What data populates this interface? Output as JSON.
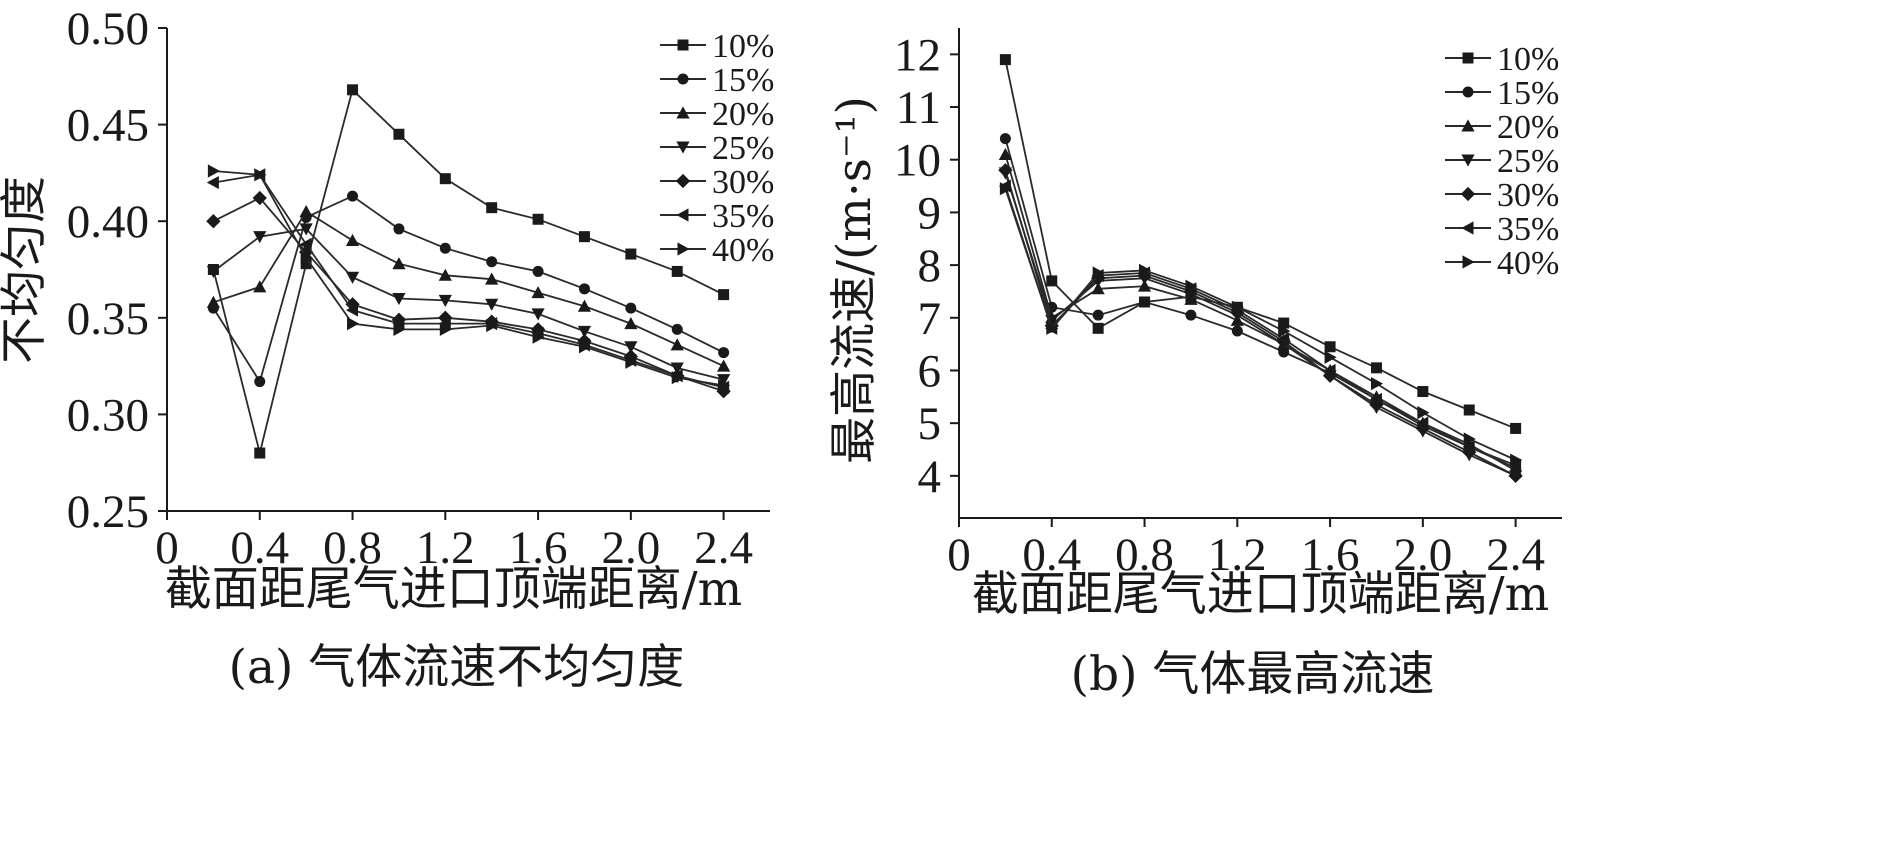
{
  "chart_data": [
    {
      "id": "a",
      "type": "line",
      "caption": "(a) 气体流速不均匀度",
      "title": "",
      "xlabel": "截面距尾气进口顶端距离/m",
      "ylabel": "不均匀度",
      "xlim": [
        0,
        2.6
      ],
      "ylim": [
        0.25,
        0.5
      ],
      "xticks": [
        0,
        0.4,
        0.8,
        1.2,
        1.6,
        2.0,
        2.4
      ],
      "xtick_labels": [
        "0",
        "0.4",
        "0.8",
        "1.2",
        "1.6",
        "2.0",
        "2.4"
      ],
      "yticks": [
        0.25,
        0.3,
        0.35,
        0.4,
        0.45,
        0.5
      ],
      "ytick_labels": [
        "0.25",
        "0.30",
        "0.35",
        "0.40",
        "0.45",
        "0.50"
      ],
      "legend_position": "top-right",
      "x": [
        0.2,
        0.4,
        0.6,
        0.8,
        1.0,
        1.2,
        1.4,
        1.6,
        1.8,
        2.0,
        2.2,
        2.4
      ],
      "series": [
        {
          "name": "10%",
          "marker": "square",
          "values": [
            0.375,
            0.28,
            0.378,
            0.468,
            0.445,
            0.422,
            0.407,
            0.401,
            0.392,
            0.383,
            0.374,
            0.362
          ]
        },
        {
          "name": "15%",
          "marker": "circle",
          "values": [
            0.355,
            0.317,
            0.402,
            0.413,
            0.396,
            0.386,
            0.379,
            0.374,
            0.365,
            0.355,
            0.344,
            0.332
          ]
        },
        {
          "name": "20%",
          "marker": "triangle-up",
          "values": [
            0.358,
            0.366,
            0.405,
            0.39,
            0.378,
            0.372,
            0.37,
            0.363,
            0.356,
            0.347,
            0.336,
            0.325
          ]
        },
        {
          "name": "25%",
          "marker": "triangle-down",
          "values": [
            0.374,
            0.392,
            0.396,
            0.371,
            0.36,
            0.359,
            0.357,
            0.352,
            0.343,
            0.335,
            0.324,
            0.318
          ]
        },
        {
          "name": "30%",
          "marker": "diamond",
          "values": [
            0.4,
            0.412,
            0.384,
            0.357,
            0.349,
            0.35,
            0.348,
            0.344,
            0.338,
            0.33,
            0.32,
            0.312
          ]
        },
        {
          "name": "35%",
          "marker": "triangle-left",
          "values": [
            0.42,
            0.424,
            0.388,
            0.354,
            0.347,
            0.347,
            0.347,
            0.342,
            0.336,
            0.328,
            0.32,
            0.314
          ]
        },
        {
          "name": "40%",
          "marker": "triangle-right",
          "values": [
            0.426,
            0.424,
            0.381,
            0.347,
            0.344,
            0.344,
            0.346,
            0.34,
            0.335,
            0.327,
            0.319,
            0.315
          ]
        }
      ]
    },
    {
      "id": "b",
      "type": "line",
      "caption": "(b) 气体最高流速",
      "title": "",
      "xlabel": "截面距尾气进口顶端距离/m",
      "ylabel": "最高流速/(m·s⁻¹)",
      "xlim": [
        0,
        2.6
      ],
      "ylim": [
        3.2,
        12.5
      ],
      "xticks": [
        0,
        0.4,
        0.8,
        1.2,
        1.6,
        2.0,
        2.4
      ],
      "xtick_labels": [
        "0",
        "0.4",
        "0.8",
        "1.2",
        "1.6",
        "2.0",
        "2.4"
      ],
      "yticks": [
        4,
        5,
        6,
        7,
        8,
        9,
        10,
        11,
        12
      ],
      "ytick_labels": [
        "4",
        "5",
        "6",
        "7",
        "8",
        "9",
        "10",
        "11",
        "12"
      ],
      "legend_position": "top-right",
      "x": [
        0.2,
        0.4,
        0.6,
        0.8,
        1.0,
        1.2,
        1.4,
        1.6,
        1.8,
        2.0,
        2.2,
        2.4
      ],
      "series": [
        {
          "name": "10%",
          "marker": "square",
          "values": [
            11.9,
            7.7,
            6.8,
            7.3,
            7.4,
            7.2,
            6.9,
            6.45,
            6.05,
            5.6,
            5.25,
            4.9
          ]
        },
        {
          "name": "15%",
          "marker": "circle",
          "values": [
            10.4,
            7.2,
            7.05,
            7.3,
            7.05,
            6.75,
            6.35,
            5.95,
            5.45,
            4.95,
            4.55,
            4.15
          ]
        },
        {
          "name": "20%",
          "marker": "triangle-up",
          "values": [
            10.1,
            7.0,
            7.55,
            7.6,
            7.35,
            6.95,
            6.5,
            6.0,
            5.5,
            5.0,
            4.6,
            4.1
          ]
        },
        {
          "name": "25%",
          "marker": "triangle-down",
          "values": [
            9.75,
            6.95,
            7.7,
            7.75,
            7.45,
            7.05,
            6.5,
            5.9,
            5.3,
            4.85,
            4.4,
            4.0
          ]
        },
        {
          "name": "30%",
          "marker": "diamond",
          "values": [
            9.8,
            6.85,
            7.75,
            7.8,
            7.5,
            7.1,
            6.55,
            5.9,
            5.35,
            4.9,
            4.45,
            4.0
          ]
        },
        {
          "name": "35%",
          "marker": "triangle-left",
          "values": [
            9.5,
            6.8,
            7.8,
            7.85,
            7.55,
            7.15,
            6.6,
            6.0,
            5.45,
            5.0,
            4.55,
            4.2
          ]
        },
        {
          "name": "40%",
          "marker": "triangle-right",
          "values": [
            9.45,
            6.8,
            7.85,
            7.9,
            7.6,
            7.2,
            6.75,
            6.25,
            5.75,
            5.2,
            4.7,
            4.3
          ]
        }
      ]
    }
  ]
}
